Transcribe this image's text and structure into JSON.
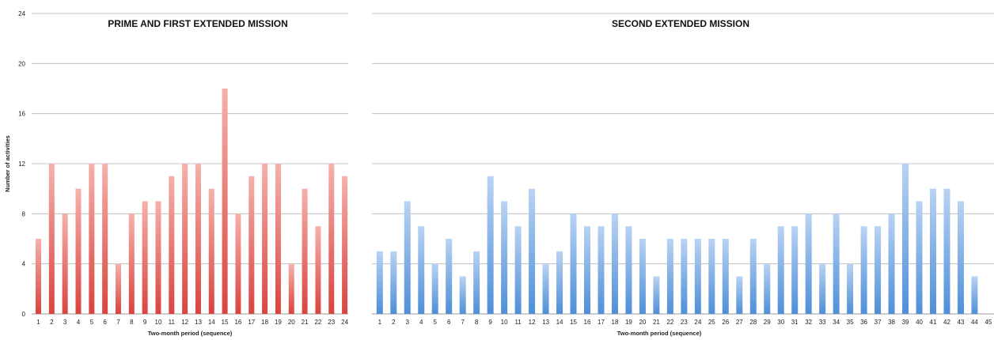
{
  "chart_data": [
    {
      "type": "bar",
      "title": "PRIME AND FIRST EXTENDED MISSION",
      "xlabel": "Two-month period (sequence)",
      "ylabel": "Number of activities",
      "ylim": [
        0,
        24
      ],
      "yticks": [
        0,
        4,
        8,
        12,
        16,
        20,
        24
      ],
      "grid": true,
      "color_top": "#f6b1ab",
      "color_bottom": "#d9443f",
      "categories": [
        "1",
        "2",
        "3",
        "4",
        "5",
        "6",
        "7",
        "8",
        "9",
        "10",
        "11",
        "12",
        "13",
        "14",
        "15",
        "16",
        "17",
        "18",
        "19",
        "20",
        "21",
        "22",
        "23",
        "24"
      ],
      "values": [
        6,
        12,
        8,
        10,
        12,
        12,
        4,
        8,
        9,
        9,
        11,
        12,
        12,
        10,
        18,
        8,
        11,
        12,
        12,
        4,
        10,
        7,
        12,
        11
      ]
    },
    {
      "type": "bar",
      "title": "SECOND EXTENDED MISSION",
      "xlabel": "Two-month period (sequence)",
      "ylabel": "",
      "ylim": [
        0,
        24
      ],
      "yticks": [
        0,
        4,
        8,
        12,
        16,
        20,
        24
      ],
      "grid": true,
      "color_top": "#b9d3f3",
      "color_bottom": "#4f8fd8",
      "categories": [
        "1",
        "2",
        "3",
        "4",
        "5",
        "6",
        "7",
        "8",
        "9",
        "10",
        "11",
        "12",
        "13",
        "14",
        "15",
        "16",
        "17",
        "18",
        "19",
        "20",
        "21",
        "22",
        "23",
        "24",
        "25",
        "26",
        "27",
        "28",
        "29",
        "30",
        "31",
        "32",
        "33",
        "34",
        "35",
        "36",
        "37",
        "38",
        "39",
        "40",
        "41",
        "42",
        "43",
        "44",
        "45"
      ],
      "values": [
        5,
        5,
        9,
        7,
        4,
        6,
        3,
        5,
        11,
        9,
        7,
        10,
        4,
        5,
        8,
        7,
        7,
        8,
        7,
        6,
        3,
        6,
        6,
        6,
        6,
        6,
        3,
        6,
        4,
        7,
        7,
        8,
        4,
        8,
        4,
        7,
        7,
        8,
        12,
        9,
        10,
        10,
        9,
        3,
        0
      ]
    }
  ]
}
